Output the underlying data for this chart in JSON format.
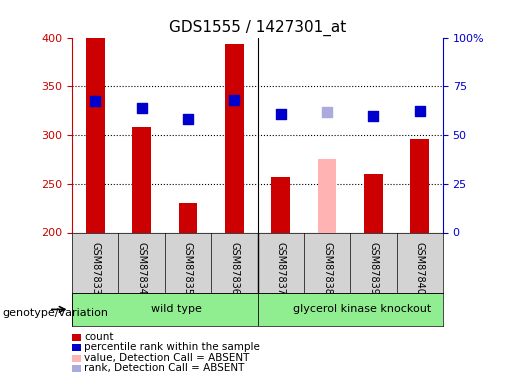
{
  "title": "GDS1555 / 1427301_at",
  "samples": [
    "GSM87833",
    "GSM87834",
    "GSM87835",
    "GSM87836",
    "GSM87837",
    "GSM87838",
    "GSM87839",
    "GSM87840"
  ],
  "bar_values": [
    400,
    308,
    230,
    393,
    257,
    275,
    260,
    296
  ],
  "bar_colors": [
    "#cc0000",
    "#cc0000",
    "#cc0000",
    "#cc0000",
    "#cc0000",
    "#ffb3b3",
    "#cc0000",
    "#cc0000"
  ],
  "dot_values": [
    335,
    328,
    316,
    336,
    322,
    324,
    319,
    325
  ],
  "dot_colors": [
    "#0000cc",
    "#0000cc",
    "#0000cc",
    "#0000cc",
    "#0000cc",
    "#aaaadd",
    "#0000cc",
    "#0000cc"
  ],
  "ymin": 200,
  "ymax": 400,
  "yticks": [
    200,
    250,
    300,
    350,
    400
  ],
  "y2min": 0,
  "y2max": 100,
  "y2ticks": [
    0,
    25,
    50,
    75,
    100
  ],
  "y2ticklabels": [
    "0",
    "25",
    "50",
    "75",
    "100%"
  ],
  "grid_values": [
    250,
    300,
    350
  ],
  "wild_type_samples": [
    0,
    1,
    2,
    3
  ],
  "knockout_samples": [
    4,
    5,
    6,
    7
  ],
  "genotype_label": "genotype/variation",
  "wild_type_label": "wild type",
  "knockout_label": "glycerol kinase knockout",
  "legend_items": [
    {
      "label": "count",
      "color": "#cc0000",
      "type": "square"
    },
    {
      "label": "percentile rank within the sample",
      "color": "#0000cc",
      "type": "square"
    },
    {
      "label": "value, Detection Call = ABSENT",
      "color": "#ffb3b3",
      "type": "square"
    },
    {
      "label": "rank, Detection Call = ABSENT",
      "color": "#aaaadd",
      "type": "square"
    }
  ],
  "bar_width": 0.4,
  "dot_size": 60,
  "title_fontsize": 11,
  "tick_fontsize": 8,
  "label_fontsize": 9,
  "axis_color_left": "#cc0000",
  "axis_color_right": "#0000cc",
  "background_color": "#ffffff",
  "plot_bg_color": "#ffffff"
}
